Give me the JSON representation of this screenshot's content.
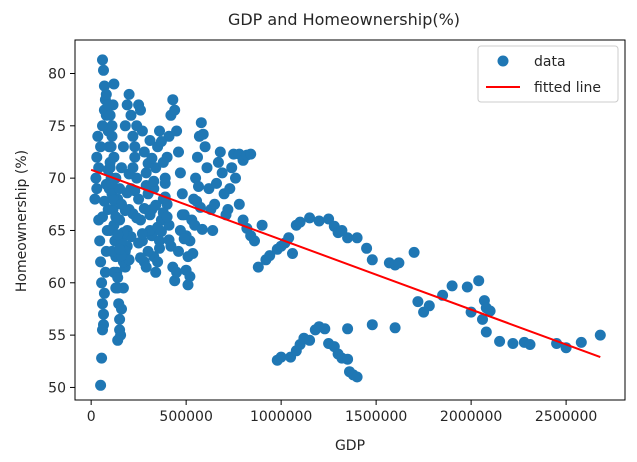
{
  "chart_data": {
    "type": "scatter",
    "title": "GDP and Homeownership(%)",
    "xlabel": "GDP",
    "ylabel": "Homeownership (%)",
    "xlim": [
      -85000,
      2810000
    ],
    "ylim": [
      48.8,
      83.2
    ],
    "xticks": [
      0,
      500000,
      1000000,
      1500000,
      2000000,
      2500000
    ],
    "xtick_labels": [
      "0",
      "500000",
      "1000000",
      "1500000",
      "2000000",
      "2500000"
    ],
    "yticks": [
      50,
      55,
      60,
      65,
      70,
      75,
      80
    ],
    "ytick_labels": [
      "50",
      "55",
      "60",
      "65",
      "70",
      "75",
      "80"
    ],
    "grid": false,
    "legend_position": "top-right",
    "legend": [
      {
        "label": "data",
        "marker": "circle",
        "color": "#1f77b4"
      },
      {
        "label": "fitted line",
        "marker": "line",
        "color": "#ff0000"
      }
    ],
    "series": [
      {
        "name": "data",
        "kind": "scatter",
        "color": "#1f77b4",
        "points": [
          [
            20000,
            68
          ],
          [
            25000,
            70
          ],
          [
            30000,
            72
          ],
          [
            35000,
            74
          ],
          [
            40000,
            66
          ],
          [
            45000,
            64
          ],
          [
            50000,
            62
          ],
          [
            55000,
            60
          ],
          [
            60000,
            58
          ],
          [
            65000,
            56
          ],
          [
            50000,
            50.2
          ],
          [
            55000,
            52.8
          ],
          [
            60000,
            55.5
          ],
          [
            65000,
            57
          ],
          [
            70000,
            59
          ],
          [
            75000,
            61
          ],
          [
            80000,
            63
          ],
          [
            85000,
            65
          ],
          [
            90000,
            67
          ],
          [
            95000,
            69
          ],
          [
            100000,
            71
          ],
          [
            105000,
            73
          ],
          [
            110000,
            75
          ],
          [
            115000,
            77
          ],
          [
            120000,
            79
          ],
          [
            60000,
            81.3
          ],
          [
            65000,
            80.3
          ],
          [
            70000,
            78.8
          ],
          [
            75000,
            77.5
          ],
          [
            80000,
            76
          ],
          [
            90000,
            74.5
          ],
          [
            95000,
            73
          ],
          [
            100000,
            71.5
          ],
          [
            105000,
            70
          ],
          [
            110000,
            68.5
          ],
          [
            115000,
            67
          ],
          [
            120000,
            65.5
          ],
          [
            125000,
            64
          ],
          [
            130000,
            62.5
          ],
          [
            135000,
            61
          ],
          [
            140000,
            59.5
          ],
          [
            145000,
            58
          ],
          [
            150000,
            56.5
          ],
          [
            155000,
            55
          ],
          [
            140000,
            54.5
          ],
          [
            150000,
            55.5
          ],
          [
            160000,
            57.5
          ],
          [
            170000,
            59.5
          ],
          [
            180000,
            61.5
          ],
          [
            190000,
            63.5
          ],
          [
            30000,
            69
          ],
          [
            40000,
            71
          ],
          [
            50000,
            73
          ],
          [
            60000,
            75
          ],
          [
            70000,
            76.5
          ],
          [
            80000,
            78
          ],
          [
            90000,
            77
          ],
          [
            100000,
            76
          ],
          [
            110000,
            74
          ],
          [
            120000,
            72
          ],
          [
            130000,
            70
          ],
          [
            140000,
            68
          ],
          [
            150000,
            66
          ],
          [
            160000,
            64
          ],
          [
            170000,
            62
          ],
          [
            180000,
            63
          ],
          [
            190000,
            65
          ],
          [
            200000,
            67
          ],
          [
            210000,
            69
          ],
          [
            220000,
            71
          ],
          [
            230000,
            73
          ],
          [
            240000,
            75
          ],
          [
            250000,
            77
          ],
          [
            260000,
            76.5
          ],
          [
            270000,
            74.5
          ],
          [
            280000,
            72.5
          ],
          [
            290000,
            70.5
          ],
          [
            300000,
            68.5
          ],
          [
            310000,
            66.5
          ],
          [
            320000,
            64.5
          ],
          [
            330000,
            62.5
          ],
          [
            340000,
            61
          ],
          [
            350000,
            62
          ],
          [
            360000,
            64
          ],
          [
            370000,
            66
          ],
          [
            380000,
            68
          ],
          [
            390000,
            70
          ],
          [
            400000,
            72
          ],
          [
            410000,
            74
          ],
          [
            420000,
            76
          ],
          [
            430000,
            77.5
          ],
          [
            440000,
            76.5
          ],
          [
            450000,
            74.5
          ],
          [
            460000,
            72.5
          ],
          [
            470000,
            70.5
          ],
          [
            480000,
            68.5
          ],
          [
            490000,
            66.5
          ],
          [
            500000,
            64.5
          ],
          [
            510000,
            62.5
          ],
          [
            520000,
            64
          ],
          [
            530000,
            66
          ],
          [
            540000,
            68
          ],
          [
            550000,
            70
          ],
          [
            560000,
            72
          ],
          [
            570000,
            74
          ],
          [
            580000,
            75.3
          ],
          [
            590000,
            74.2
          ],
          [
            600000,
            73
          ],
          [
            610000,
            71
          ],
          [
            620000,
            69
          ],
          [
            630000,
            67
          ],
          [
            640000,
            65
          ],
          [
            650000,
            67.5
          ],
          [
            660000,
            69.5
          ],
          [
            670000,
            71.5
          ],
          [
            680000,
            72.5
          ],
          [
            690000,
            70.5
          ],
          [
            700000,
            68.5
          ],
          [
            710000,
            66.5
          ],
          [
            720000,
            67
          ],
          [
            730000,
            69
          ],
          [
            740000,
            71
          ],
          [
            750000,
            72.3
          ],
          [
            760000,
            70
          ],
          [
            780000,
            67.5
          ],
          [
            800000,
            66
          ],
          [
            820000,
            65.2
          ],
          [
            840000,
            64.5
          ],
          [
            860000,
            64
          ],
          [
            880000,
            61.5
          ],
          [
            780000,
            72.3
          ],
          [
            800000,
            71.7
          ],
          [
            820000,
            72.2
          ],
          [
            840000,
            72.3
          ],
          [
            150000,
            69
          ],
          [
            160000,
            71
          ],
          [
            170000,
            73
          ],
          [
            180000,
            75
          ],
          [
            190000,
            77
          ],
          [
            200000,
            78
          ],
          [
            210000,
            76
          ],
          [
            220000,
            74
          ],
          [
            230000,
            72
          ],
          [
            240000,
            70
          ],
          [
            250000,
            68
          ],
          [
            260000,
            66
          ],
          [
            270000,
            64
          ],
          [
            280000,
            62
          ],
          [
            290000,
            61.5
          ],
          [
            300000,
            63
          ],
          [
            310000,
            65
          ],
          [
            320000,
            67
          ],
          [
            330000,
            69
          ],
          [
            340000,
            71
          ],
          [
            350000,
            73
          ],
          [
            360000,
            74.5
          ],
          [
            370000,
            73.5
          ],
          [
            380000,
            71.5
          ],
          [
            390000,
            69.5
          ],
          [
            400000,
            67.5
          ],
          [
            410000,
            65.5
          ],
          [
            420000,
            63.5
          ],
          [
            430000,
            61.5
          ],
          [
            440000,
            60.2
          ],
          [
            450000,
            61
          ],
          [
            460000,
            63
          ],
          [
            470000,
            65
          ],
          [
            480000,
            66.5
          ],
          [
            490000,
            64.2
          ],
          [
            500000,
            61.2
          ],
          [
            510000,
            59.8
          ],
          [
            520000,
            60.6
          ],
          [
            535000,
            62.8
          ],
          [
            545000,
            65.5
          ],
          [
            555000,
            67.8
          ],
          [
            565000,
            69.2
          ],
          [
            575000,
            67.2
          ],
          [
            585000,
            65.1
          ],
          [
            200000,
            62.2
          ],
          [
            210000,
            64.4
          ],
          [
            220000,
            66.6
          ],
          [
            230000,
            68.8
          ],
          [
            240000,
            66.2
          ],
          [
            250000,
            63.8
          ],
          [
            260000,
            62.4
          ],
          [
            270000,
            64.7
          ],
          [
            280000,
            67.1
          ],
          [
            290000,
            69.3
          ],
          [
            300000,
            71.4
          ],
          [
            310000,
            73.6
          ],
          [
            320000,
            71.9
          ],
          [
            330000,
            69.7
          ],
          [
            340000,
            67.4
          ],
          [
            350000,
            65.3
          ],
          [
            360000,
            63.3
          ],
          [
            370000,
            64.9
          ],
          [
            380000,
            66.7
          ],
          [
            390000,
            68.2
          ],
          [
            400000,
            66.3
          ],
          [
            410000,
            64.1
          ],
          [
            100000,
            65
          ],
          [
            110000,
            63
          ],
          [
            120000,
            61
          ],
          [
            130000,
            59.5
          ],
          [
            140000,
            60.5
          ],
          [
            160000,
            62.6
          ],
          [
            170000,
            64.8
          ],
          [
            180000,
            66.9
          ],
          [
            190000,
            68.6
          ],
          [
            200000,
            70.4
          ],
          [
            60000,
            66.3
          ],
          [
            70000,
            67.8
          ],
          [
            80000,
            69.4
          ],
          [
            90000,
            70.8
          ],
          [
            110000,
            69.5
          ],
          [
            120000,
            67.9
          ],
          [
            130000,
            66.3
          ],
          [
            140000,
            64.6
          ],
          [
            150000,
            63.2
          ],
          [
            160000,
            67.5
          ],
          [
            900000,
            65.5
          ],
          [
            920000,
            62.2
          ],
          [
            940000,
            62.6
          ],
          [
            980000,
            63.2
          ],
          [
            1000000,
            63.5
          ],
          [
            1020000,
            63.8
          ],
          [
            1040000,
            64.3
          ],
          [
            1060000,
            62.8
          ],
          [
            1080000,
            65.5
          ],
          [
            1100000,
            65.8
          ],
          [
            1150000,
            66.2
          ],
          [
            1200000,
            65.9
          ],
          [
            1250000,
            66.1
          ],
          [
            1280000,
            65.4
          ],
          [
            1300000,
            64.8
          ],
          [
            1320000,
            65
          ],
          [
            1350000,
            64.3
          ],
          [
            1400000,
            64.3
          ],
          [
            1450000,
            63.3
          ],
          [
            1480000,
            62.2
          ],
          [
            1570000,
            61.9
          ],
          [
            1600000,
            61.7
          ],
          [
            1620000,
            61.9
          ],
          [
            1700000,
            62.9
          ],
          [
            1720000,
            58.2
          ],
          [
            1750000,
            57.2
          ],
          [
            1780000,
            57.8
          ],
          [
            1850000,
            58.8
          ],
          [
            1900000,
            59.7
          ],
          [
            1980000,
            59.6
          ],
          [
            2000000,
            57.2
          ],
          [
            2040000,
            60.2
          ],
          [
            2060000,
            56.5
          ],
          [
            2070000,
            58.3
          ],
          [
            2080000,
            57.6
          ],
          [
            2100000,
            57.3
          ],
          [
            2080000,
            55.3
          ],
          [
            2150000,
            54.4
          ],
          [
            2220000,
            54.2
          ],
          [
            2280000,
            54.3
          ],
          [
            2310000,
            54.1
          ],
          [
            2450000,
            54.2
          ],
          [
            2500000,
            53.8
          ],
          [
            2580000,
            54.3
          ],
          [
            2680000,
            55
          ],
          [
            980000,
            52.6
          ],
          [
            1000000,
            52.9
          ],
          [
            1050000,
            52.9
          ],
          [
            1080000,
            53.5
          ],
          [
            1100000,
            54.1
          ],
          [
            1120000,
            54.7
          ],
          [
            1150000,
            54.5
          ],
          [
            1180000,
            55.5
          ],
          [
            1200000,
            55.8
          ],
          [
            1230000,
            55.6
          ],
          [
            1250000,
            54.2
          ],
          [
            1280000,
            53.9
          ],
          [
            1300000,
            53.2
          ],
          [
            1320000,
            52.8
          ],
          [
            1350000,
            52.7
          ],
          [
            1360000,
            51.5
          ],
          [
            1380000,
            51.2
          ],
          [
            1400000,
            51
          ],
          [
            1350000,
            55.6
          ],
          [
            1480000,
            56
          ],
          [
            1600000,
            55.7
          ]
        ]
      },
      {
        "name": "fitted line",
        "kind": "line",
        "color": "#ff0000",
        "points": [
          [
            0,
            70.8
          ],
          [
            2680000,
            52.9
          ]
        ]
      }
    ]
  }
}
